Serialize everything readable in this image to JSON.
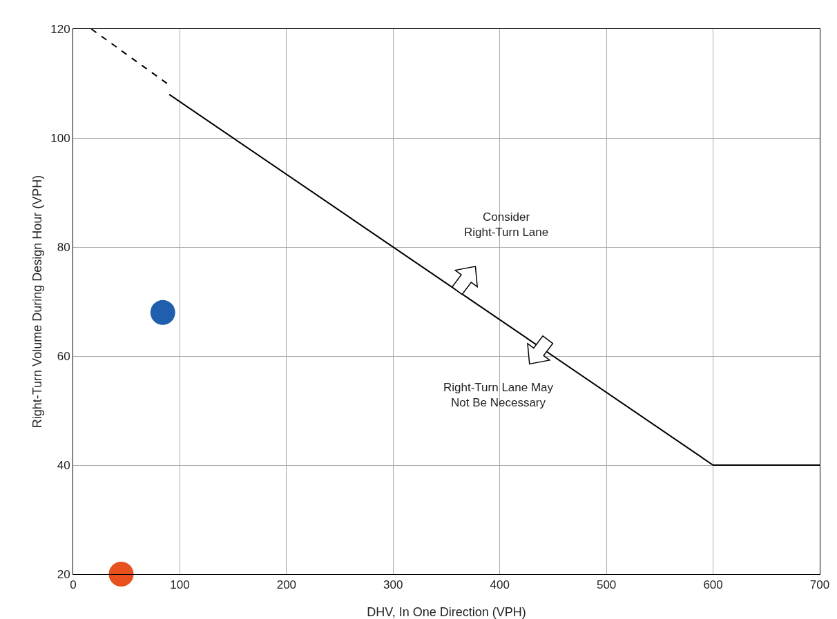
{
  "chart_data": {
    "type": "line",
    "xlabel": "DHV, In One Direction (VPH)",
    "ylabel": "Right-Turn Volume During Design Hour (VPH)",
    "xlim": [
      0,
      700
    ],
    "xticks": [
      0,
      100,
      200,
      300,
      400,
      500,
      600,
      700
    ],
    "ylim": [
      20,
      120
    ],
    "yticks": [
      20,
      40,
      60,
      80,
      100,
      120
    ],
    "grid": true,
    "series": [
      {
        "color": "#000000",
        "line_style": "dashed",
        "marker": "none",
        "x": [
          17,
          88
        ],
        "values": [
          120,
          110
        ]
      },
      {
        "color": "#000000",
        "line_style": "solid",
        "marker": "none",
        "x": [
          90,
          600,
          700
        ],
        "values": [
          108,
          40,
          40
        ]
      },
      {
        "type": "scatter",
        "color": "#1f5fad",
        "marker": "circle",
        "x": [
          84
        ],
        "values": [
          68
        ]
      },
      {
        "type": "scatter",
        "color": "#e8501e",
        "marker": "circle",
        "x": [
          45
        ],
        "values": [
          20
        ]
      }
    ],
    "annotations": [
      "Consider\nRight-Turn Lane",
      "Right-Turn Lane May\nNot Be Necessary"
    ]
  }
}
